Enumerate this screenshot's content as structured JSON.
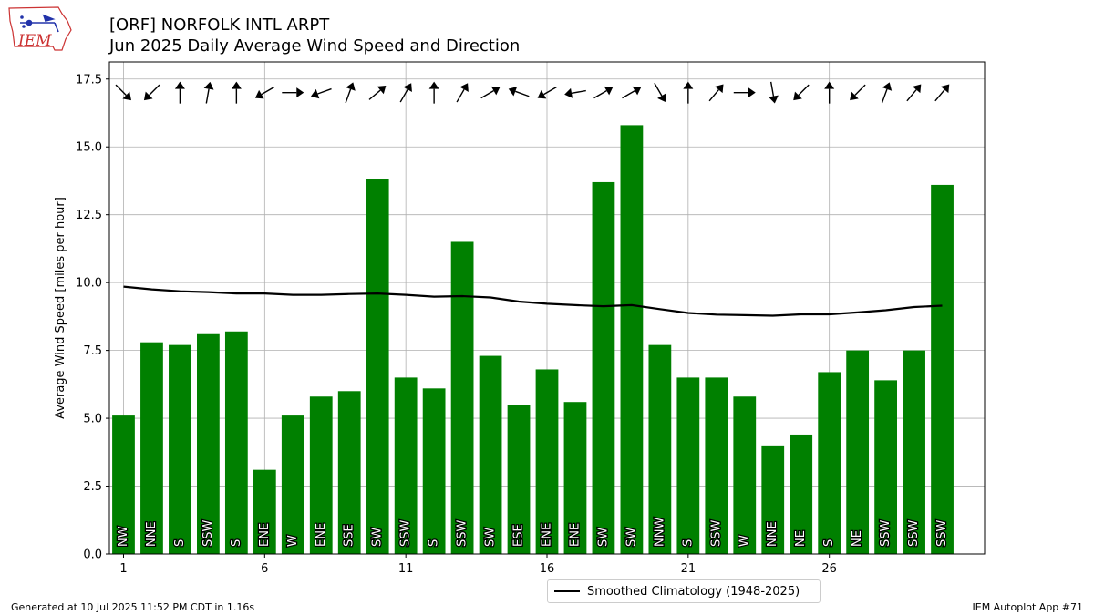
{
  "header": {
    "title_line1": "[ORF] NORFOLK INTL ARPT",
    "title_line2": "Jun 2025 Daily Average Wind Speed and Direction"
  },
  "logo": {
    "text": "IEM",
    "icon": "iem-iowa-logo-icon"
  },
  "footer": {
    "left": "Generated at 10 Jul 2025 11:52 PM CDT in 1.16s",
    "right": "IEM Autoplot App #71"
  },
  "chart_data": {
    "type": "bar",
    "ylabel": "Average Wind Speed [miles per hour]",
    "xlabel": "",
    "ylim": [
      0,
      18.13
    ],
    "xlim": [
      0.5,
      31.5
    ],
    "yticks": [
      "0.0",
      "2.5",
      "5.0",
      "7.5",
      "10.0",
      "12.5",
      "15.0",
      "17.5"
    ],
    "ytick_values": [
      0,
      2.5,
      5,
      7.5,
      10,
      12.5,
      15,
      17.5
    ],
    "xticks": [
      "1",
      "6",
      "11",
      "16",
      "21",
      "26"
    ],
    "xtick_values": [
      1,
      6,
      11,
      16,
      21,
      26
    ],
    "grid": true,
    "bar_color": "#008000",
    "days": [
      1,
      2,
      3,
      4,
      5,
      6,
      7,
      8,
      9,
      10,
      11,
      12,
      13,
      14,
      15,
      16,
      17,
      18,
      19,
      20,
      21,
      22,
      23,
      24,
      25,
      26,
      27,
      28,
      29,
      30
    ],
    "values": [
      5.1,
      7.8,
      7.7,
      8.1,
      8.2,
      3.1,
      5.1,
      5.8,
      6.0,
      13.8,
      6.5,
      6.1,
      11.5,
      7.3,
      5.5,
      6.8,
      5.6,
      13.7,
      15.8,
      7.7,
      6.5,
      6.5,
      5.8,
      4.0,
      4.4,
      6.7,
      7.5,
      6.4,
      7.5,
      13.6
    ],
    "directions": [
      "NW",
      "NNE",
      "S",
      "SSW",
      "S",
      "ENE",
      "W",
      "ENE",
      "SSE",
      "SW",
      "SSW",
      "S",
      "SSW",
      "SW",
      "ESE",
      "ENE",
      "ENE",
      "SW",
      "SW",
      "NNW",
      "S",
      "SSW",
      "W",
      "NNE",
      "NE",
      "S",
      "NE",
      "SSW",
      "SSW",
      "SSW"
    ],
    "arrow_y": 17.0,
    "arrow_angles_deg": [
      -45,
      -135,
      90,
      80,
      90,
      -150,
      0,
      -160,
      70,
      40,
      60,
      90,
      60,
      30,
      160,
      -150,
      -170,
      30,
      30,
      -60,
      90,
      50,
      0,
      -80,
      -135,
      90,
      -135,
      70,
      50,
      50
    ],
    "series": [
      {
        "name": "Smoothed Climatology (1948-2025)",
        "color": "#000000",
        "values": [
          9.85,
          9.75,
          9.68,
          9.65,
          9.6,
          9.6,
          9.55,
          9.55,
          9.58,
          9.6,
          9.55,
          9.48,
          9.5,
          9.45,
          9.3,
          9.22,
          9.17,
          9.13,
          9.17,
          9.02,
          8.88,
          8.82,
          8.8,
          8.78,
          8.83,
          8.83,
          8.9,
          8.98,
          9.1,
          9.15
        ]
      }
    ],
    "legend_position": "bottom-center"
  }
}
